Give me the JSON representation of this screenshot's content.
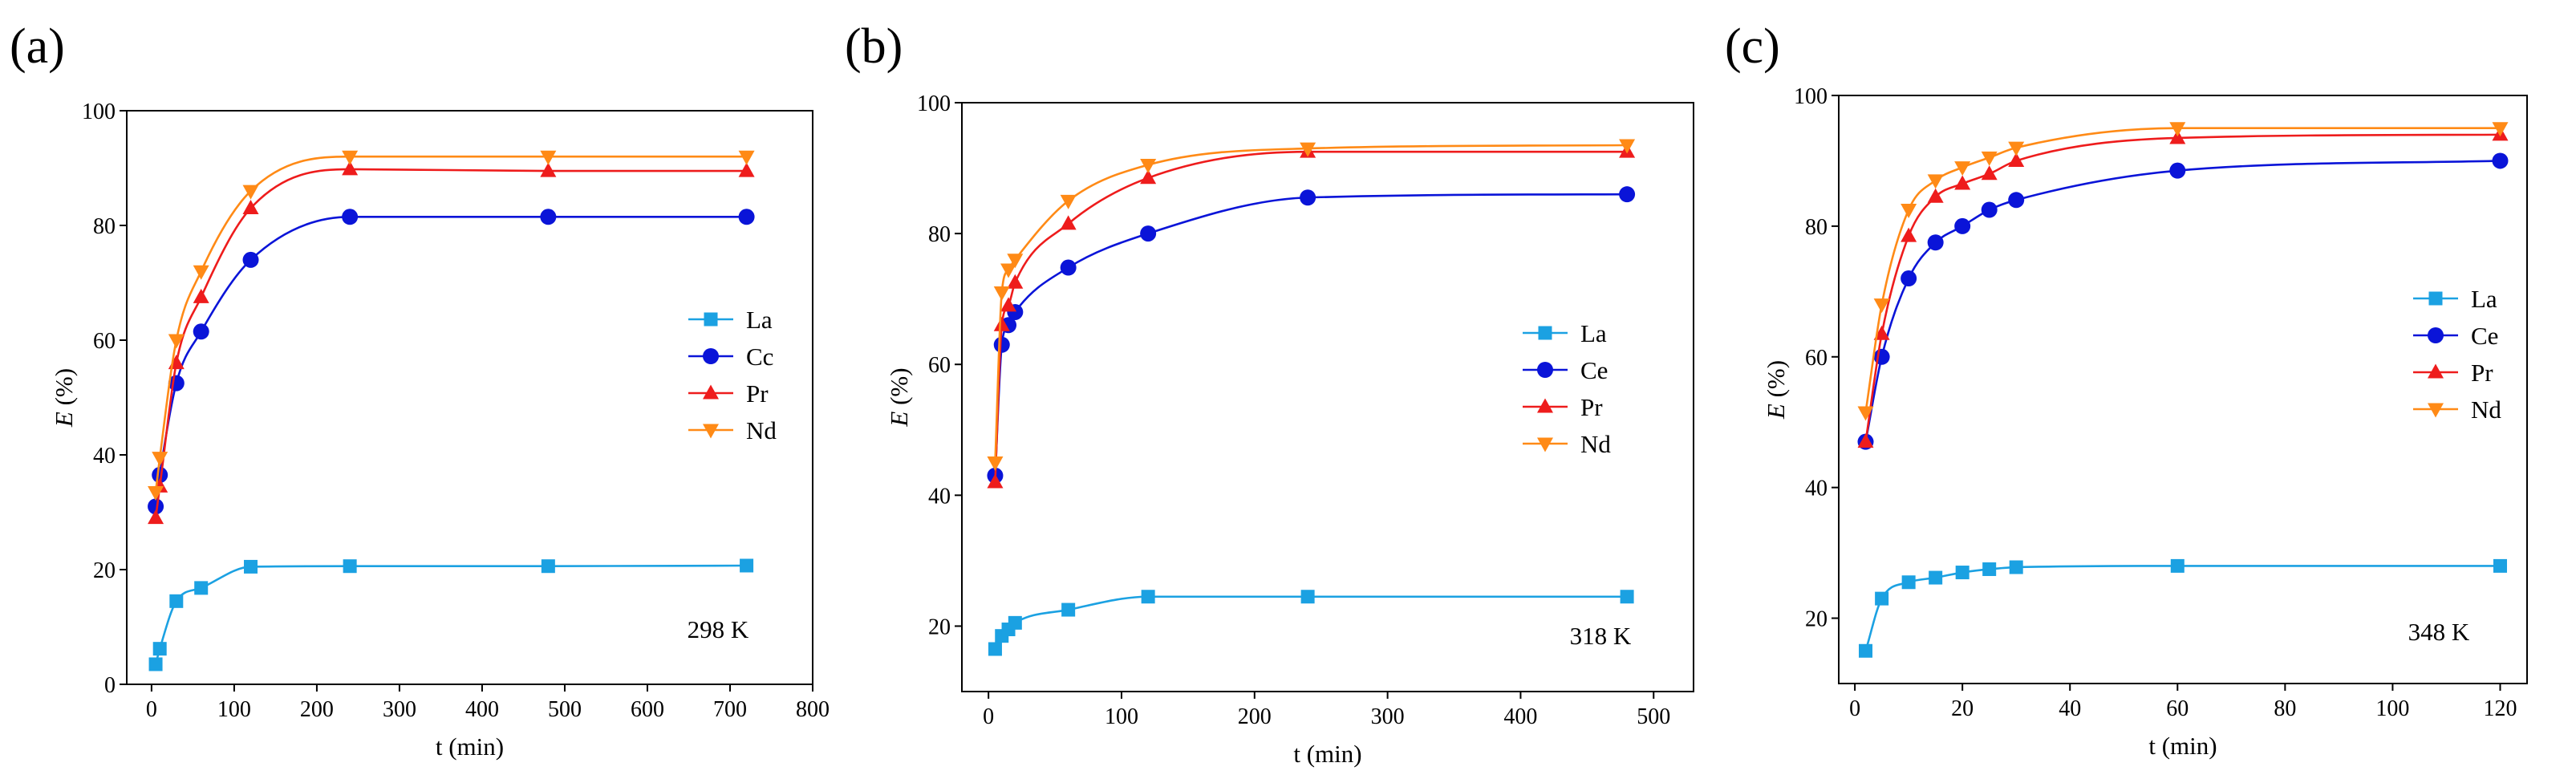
{
  "chart_data": [
    {
      "type": "line",
      "panel_label": "(a)",
      "annotation": "298 K",
      "xlabel": "t (min)",
      "ylabel_italic": "E",
      "ylabel_unit": " (%)",
      "xlim": [
        -30,
        800
      ],
      "ylim": [
        0,
        100
      ],
      "x_ticks": [
        0,
        100,
        200,
        300,
        400,
        500,
        600,
        700,
        800
      ],
      "y_ticks": [
        0,
        20,
        40,
        60,
        80,
        100
      ],
      "legend_position": "right-middle",
      "series": [
        {
          "name": "La",
          "color": "#1ba1e2",
          "marker": "square",
          "x": [
            5,
            10,
            30,
            60,
            120,
            240,
            480,
            720
          ],
          "y": [
            3.5,
            6.2,
            14.5,
            16.8,
            20.5,
            20.6,
            20.6,
            20.7
          ]
        },
        {
          "name": "Cc",
          "color": "#0a14d8",
          "marker": "circle",
          "x": [
            5,
            10,
            30,
            60,
            120,
            240,
            480,
            720
          ],
          "y": [
            31,
            36.5,
            52.5,
            61.5,
            74,
            81.5,
            81.5,
            81.5
          ]
        },
        {
          "name": "Pr",
          "color": "#ee1c1c",
          "marker": "triangle-up",
          "x": [
            5,
            10,
            30,
            60,
            120,
            240,
            480,
            720
          ],
          "y": [
            29,
            34.5,
            56,
            67.5,
            83,
            89.8,
            89.5,
            89.5
          ]
        },
        {
          "name": "Nd",
          "color": "#ff8a16",
          "marker": "triangle-down",
          "x": [
            5,
            10,
            30,
            60,
            120,
            240,
            480,
            720
          ],
          "y": [
            33.5,
            39.5,
            60,
            72,
            86,
            92,
            92,
            92
          ]
        }
      ]
    },
    {
      "type": "line",
      "panel_label": "(b)",
      "annotation": "318 K",
      "xlabel": "t (min)",
      "ylabel_italic": "E",
      "ylabel_unit": " (%)",
      "xlim": [
        -20,
        530
      ],
      "ylim": [
        10,
        100
      ],
      "x_ticks": [
        0,
        100,
        200,
        300,
        400,
        500
      ],
      "y_ticks": [
        20,
        40,
        60,
        80,
        100
      ],
      "legend_position": "right-middle",
      "series": [
        {
          "name": "La",
          "color": "#1ba1e2",
          "marker": "square",
          "x": [
            5,
            10,
            15,
            20,
            60,
            120,
            240,
            480
          ],
          "y": [
            16.5,
            18.5,
            19.5,
            20.5,
            22.5,
            24.5,
            24.5,
            24.5
          ]
        },
        {
          "name": "Ce",
          "color": "#0a14d8",
          "marker": "circle",
          "x": [
            5,
            10,
            15,
            20,
            60,
            120,
            240,
            480
          ],
          "y": [
            43,
            63,
            66,
            68,
            74.8,
            80,
            85.5,
            86
          ]
        },
        {
          "name": "Pr",
          "color": "#ee1c1c",
          "marker": "triangle-up",
          "x": [
            5,
            10,
            15,
            20,
            60,
            120,
            240,
            480
          ],
          "y": [
            42,
            66,
            69,
            72.5,
            81.5,
            88.5,
            92.5,
            92.5
          ]
        },
        {
          "name": "Nd",
          "color": "#ff8a16",
          "marker": "triangle-down",
          "x": [
            5,
            10,
            15,
            20,
            60,
            120,
            240,
            480
          ],
          "y": [
            45,
            71,
            74.5,
            76,
            85,
            90.5,
            93,
            93.5
          ]
        }
      ]
    },
    {
      "type": "line",
      "panel_label": "(c)",
      "annotation": "348 K",
      "xlabel": "t (min)",
      "ylabel_italic": "E",
      "ylabel_unit": " (%)",
      "xlim": [
        -3,
        125
      ],
      "ylim": [
        10,
        100
      ],
      "x_ticks": [
        0,
        20,
        40,
        60,
        80,
        100,
        120
      ],
      "y_ticks": [
        20,
        40,
        60,
        80,
        100
      ],
      "legend_position": "right-middle",
      "series": [
        {
          "name": "La",
          "color": "#1ba1e2",
          "marker": "square",
          "x": [
            2,
            5,
            10,
            15,
            20,
            25,
            30,
            60,
            120
          ],
          "y": [
            15,
            23,
            25.5,
            26.2,
            27,
            27.5,
            27.8,
            28,
            28
          ]
        },
        {
          "name": "Ce",
          "color": "#0a14d8",
          "marker": "circle",
          "x": [
            2,
            5,
            10,
            15,
            20,
            25,
            30,
            60,
            120
          ],
          "y": [
            47,
            60,
            72,
            77.5,
            80,
            82.5,
            84,
            88.5,
            90
          ]
        },
        {
          "name": "Pr",
          "color": "#ee1c1c",
          "marker": "triangle-up",
          "x": [
            2,
            5,
            10,
            15,
            20,
            25,
            30,
            60,
            120
          ],
          "y": [
            47,
            63.5,
            78.5,
            84.5,
            86.5,
            88,
            90,
            93.5,
            94
          ]
        },
        {
          "name": "Nd",
          "color": "#ff8a16",
          "marker": "triangle-down",
          "x": [
            2,
            5,
            10,
            15,
            20,
            25,
            30,
            60,
            120
          ],
          "y": [
            51.5,
            68,
            82.5,
            87,
            89,
            90.5,
            92,
            95,
            95
          ]
        }
      ]
    }
  ]
}
